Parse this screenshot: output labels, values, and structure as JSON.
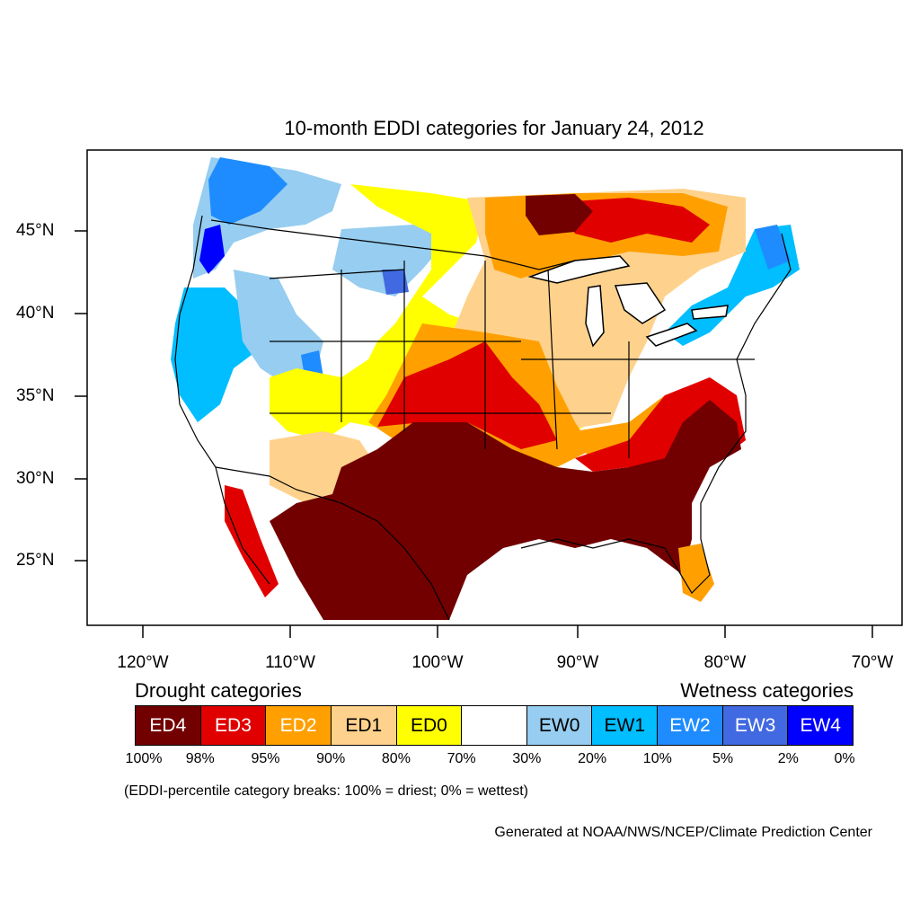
{
  "title": "10-month EDDI categories for January 24, 2012",
  "lon_labels": [
    "120°W",
    "110°W",
    "100°W",
    "90°W",
    "80°W",
    "70°W"
  ],
  "lat_labels": [
    "45°N",
    "40°N",
    "35°N",
    "30°N",
    "25°N"
  ],
  "legend": {
    "drought_heading": "Drought categories",
    "wetness_heading": "Wetness categories",
    "categories": [
      {
        "label": "ED4",
        "color": "#720000",
        "text_color": "#ffffff"
      },
      {
        "label": "ED3",
        "color": "#e10000",
        "text_color": "#ffffff"
      },
      {
        "label": "ED2",
        "color": "#ffa000",
        "text_color": "#ffffff"
      },
      {
        "label": "ED1",
        "color": "#fed28c",
        "text_color": "#000000"
      },
      {
        "label": "ED0",
        "color": "#ffff00",
        "text_color": "#000000"
      },
      {
        "label": "",
        "color": "#ffffff",
        "text_color": "#000000"
      },
      {
        "label": "EW0",
        "color": "#96cdf0",
        "text_color": "#000000"
      },
      {
        "label": "EW1",
        "color": "#00beff",
        "text_color": "#000000"
      },
      {
        "label": "EW2",
        "color": "#1e8cff",
        "text_color": "#ffffff"
      },
      {
        "label": "EW3",
        "color": "#4169e1",
        "text_color": "#ffffff"
      },
      {
        "label": "EW4",
        "color": "#0000ff",
        "text_color": "#ffffff"
      }
    ],
    "breaks": [
      "100%",
      "98%",
      "95%",
      "90%",
      "80%",
      "70%",
      "30%",
      "20%",
      "10%",
      "5%",
      "2%",
      "0%"
    ]
  },
  "note": "(EDDI-percentile category breaks: 100% = driest; 0% = wettest)",
  "credit": "Generated at NOAA/NWS/NCEP/Climate Prediction Center"
}
